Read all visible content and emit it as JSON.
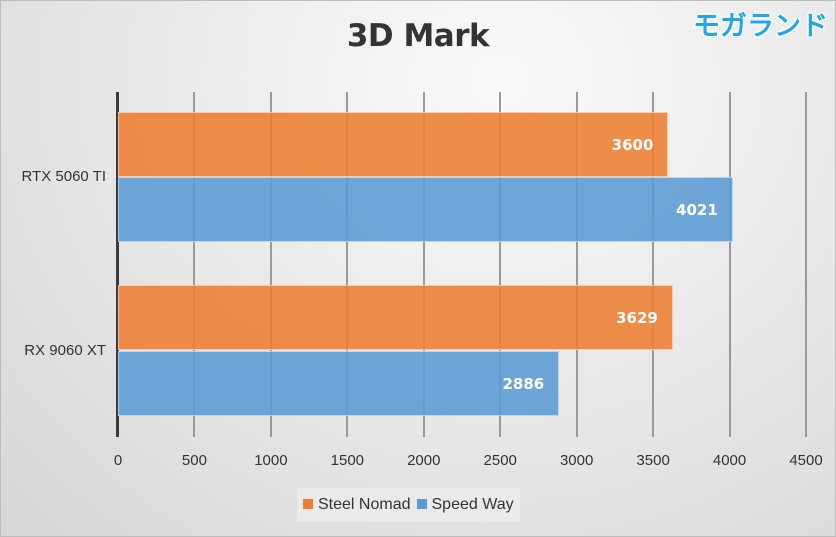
{
  "brand": "モガランド",
  "chart_data": {
    "type": "bar",
    "orientation": "horizontal",
    "title": "3D Mark",
    "categories": [
      "RTX 5060 TI",
      "RX 9060 XT"
    ],
    "series": [
      {
        "name": "Steel Nomad",
        "color": "#ED7D31",
        "values": [
          3600,
          3629
        ]
      },
      {
        "name": "Speed Way",
        "color": "#5B9BD5",
        "values": [
          4021,
          2886
        ]
      }
    ],
    "xlabel": "",
    "ylabel": "",
    "xlim": [
      0,
      4500
    ],
    "x_ticks": [
      "0",
      "500",
      "1000",
      "1500",
      "2000",
      "2500",
      "3000",
      "3500",
      "4000",
      "4500"
    ],
    "grid": true,
    "legend_position": "bottom",
    "data_labels": true
  }
}
